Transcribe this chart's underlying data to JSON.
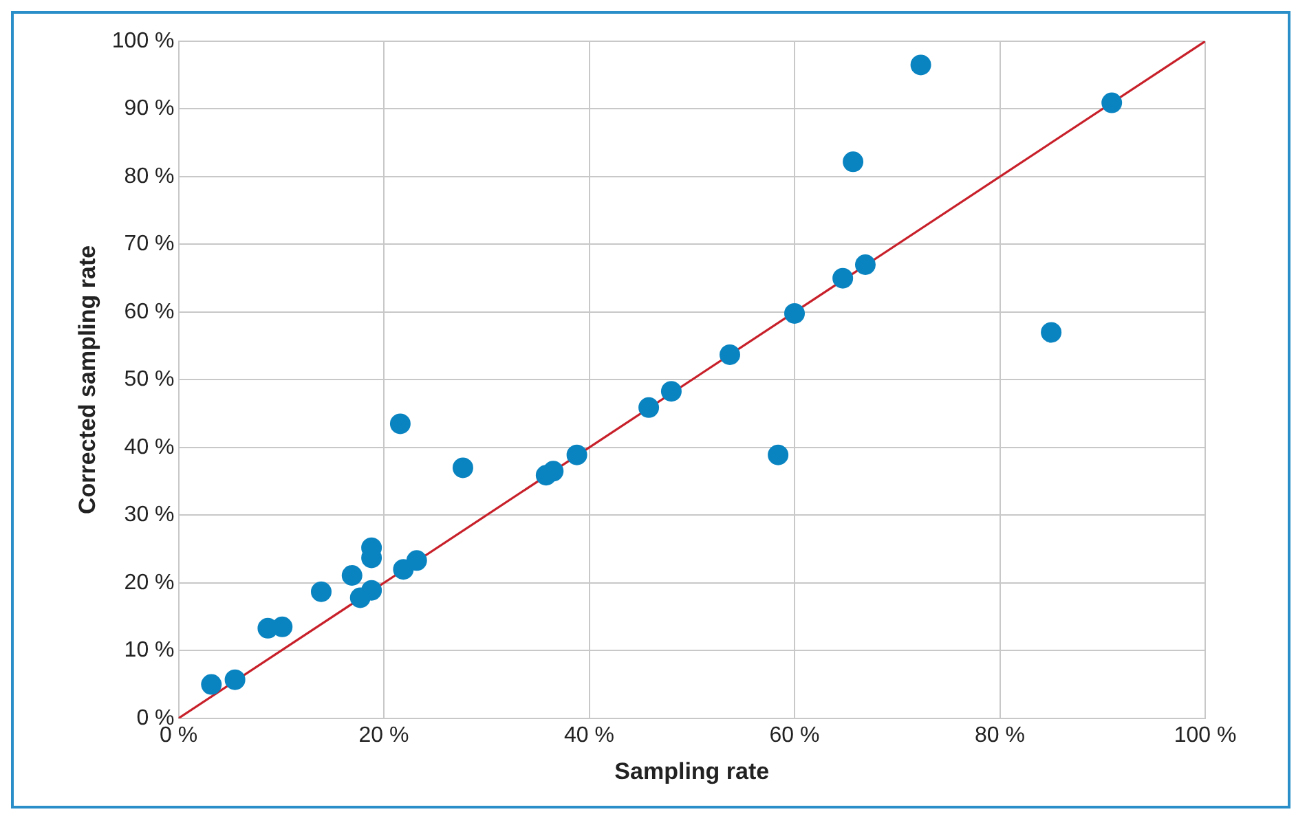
{
  "chart_data": {
    "type": "scatter",
    "xlabel": "Sampling rate",
    "ylabel": "Corrected sampling rate",
    "series": [
      {
        "color": "#0a84c1",
        "marker": "circle",
        "x": [
          3.2,
          5.5,
          8.7,
          10.1,
          13.9,
          16.9,
          17.7,
          18.8,
          18.8,
          18.8,
          21.6,
          21.9,
          23.2,
          27.7,
          35.8,
          36.5,
          38.8,
          45.8,
          48.0,
          53.7,
          58.4,
          60.0,
          64.7,
          65.7,
          66.9,
          72.3,
          85.0,
          90.9
        ],
        "values": [
          5.0,
          5.7,
          13.3,
          13.5,
          18.7,
          21.1,
          17.8,
          18.9,
          23.7,
          25.2,
          43.5,
          22.0,
          23.3,
          37.0,
          35.9,
          36.5,
          38.9,
          45.9,
          48.3,
          53.7,
          38.9,
          59.8,
          65.0,
          82.2,
          67.0,
          96.5,
          57.0,
          90.9
        ]
      },
      {
        "type": "line",
        "color": "#c8202a",
        "x": [
          0,
          100
        ],
        "values": [
          0,
          100
        ]
      }
    ],
    "xlim": [
      0,
      100
    ],
    "ylim": [
      0,
      100
    ],
    "xticks": [
      {
        "value": 0,
        "label": "0 %"
      },
      {
        "value": 20,
        "label": "20 %"
      },
      {
        "value": 40,
        "label": "40 %"
      },
      {
        "value": 60,
        "label": "60 %"
      },
      {
        "value": 80,
        "label": "80 %"
      },
      {
        "value": 100,
        "label": "100 %"
      }
    ],
    "yticks": [
      {
        "value": 0,
        "label": "0 %"
      },
      {
        "value": 10,
        "label": "10 %"
      },
      {
        "value": 20,
        "label": "20 %"
      },
      {
        "value": 30,
        "label": "30 %"
      },
      {
        "value": 40,
        "label": "40 %"
      },
      {
        "value": 50,
        "label": "50 %"
      },
      {
        "value": 60,
        "label": "60 %"
      },
      {
        "value": 70,
        "label": "70 %"
      },
      {
        "value": 80,
        "label": "80 %"
      },
      {
        "value": 90,
        "label": "90 %"
      },
      {
        "value": 100,
        "label": "100 %"
      }
    ],
    "grid": true,
    "legend": false
  }
}
